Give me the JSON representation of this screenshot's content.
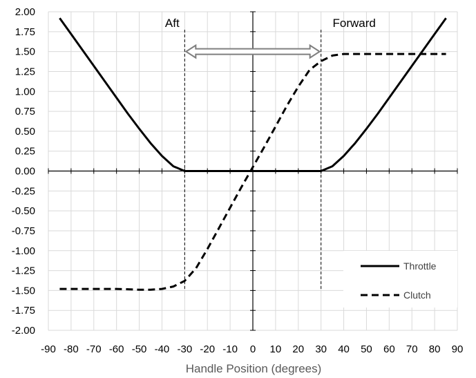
{
  "chart_data": {
    "type": "line",
    "title": "",
    "xlabel": "Handle Position (degrees)",
    "ylabel": "",
    "xlim": [
      -90,
      90
    ],
    "ylim": [
      -2.0,
      2.0
    ],
    "x_ticks": [
      -90,
      -80,
      -70,
      -60,
      -50,
      -40,
      -30,
      -20,
      -10,
      0,
      10,
      20,
      30,
      40,
      50,
      60,
      70,
      80,
      90
    ],
    "y_ticks": [
      -2.0,
      -1.75,
      -1.5,
      -1.25,
      -1.0,
      -0.75,
      -0.5,
      -0.25,
      0.0,
      0.25,
      0.5,
      0.75,
      1.0,
      1.25,
      1.5,
      1.75,
      2.0
    ],
    "x_tick_labels": [
      "-90",
      "-80",
      "-70",
      "-60",
      "-50",
      "-40",
      "-30",
      "-20",
      "-10",
      "0",
      "10",
      "20",
      "30",
      "40",
      "50",
      "60",
      "70",
      "80",
      "90"
    ],
    "y_tick_labels": [
      "-2.00",
      "-1.75",
      "-1.50",
      "-1.25",
      "-1.00",
      "-0.75",
      "-0.50",
      "-0.25",
      "0.00",
      "0.25",
      "0.50",
      "0.75",
      "1.00",
      "1.25",
      "1.50",
      "1.75",
      "2.00"
    ],
    "grid": true,
    "legend_position": "bottom-right",
    "series": [
      {
        "name": "Throttle",
        "style": "solid",
        "color": "#000000",
        "x": [
          -85,
          -80,
          -75,
          -70,
          -65,
          -60,
          -55,
          -50,
          -45,
          -40,
          -35,
          -30,
          -20,
          -10,
          0,
          10,
          20,
          30,
          35,
          40,
          45,
          50,
          55,
          60,
          65,
          70,
          75,
          80,
          85
        ],
        "y": [
          1.92,
          1.72,
          1.52,
          1.32,
          1.12,
          0.92,
          0.72,
          0.53,
          0.35,
          0.19,
          0.06,
          0.0,
          0.0,
          0.0,
          0.0,
          0.0,
          0.0,
          0.0,
          0.06,
          0.19,
          0.35,
          0.53,
          0.72,
          0.92,
          1.12,
          1.32,
          1.52,
          1.72,
          1.92
        ]
      },
      {
        "name": "Clutch",
        "style": "dashed",
        "color": "#000000",
        "x": [
          -85,
          -80,
          -70,
          -60,
          -50,
          -45,
          -40,
          -35,
          -30,
          -25,
          -20,
          -15,
          -10,
          -5,
          0,
          5,
          10,
          15,
          20,
          25,
          30,
          35,
          40,
          50,
          60,
          70,
          80,
          85
        ],
        "y": [
          -1.48,
          -1.48,
          -1.48,
          -1.48,
          -1.49,
          -1.49,
          -1.48,
          -1.45,
          -1.38,
          -1.22,
          -0.98,
          -0.72,
          -0.46,
          -0.2,
          0.05,
          0.3,
          0.56,
          0.82,
          1.06,
          1.27,
          1.38,
          1.45,
          1.47,
          1.47,
          1.47,
          1.47,
          1.47,
          1.47
        ]
      }
    ],
    "annotations": [
      {
        "text": "Aft",
        "x": -30
      },
      {
        "text": "Forward",
        "x": 30
      }
    ],
    "reference_lines_x": [
      -30,
      30
    ]
  }
}
